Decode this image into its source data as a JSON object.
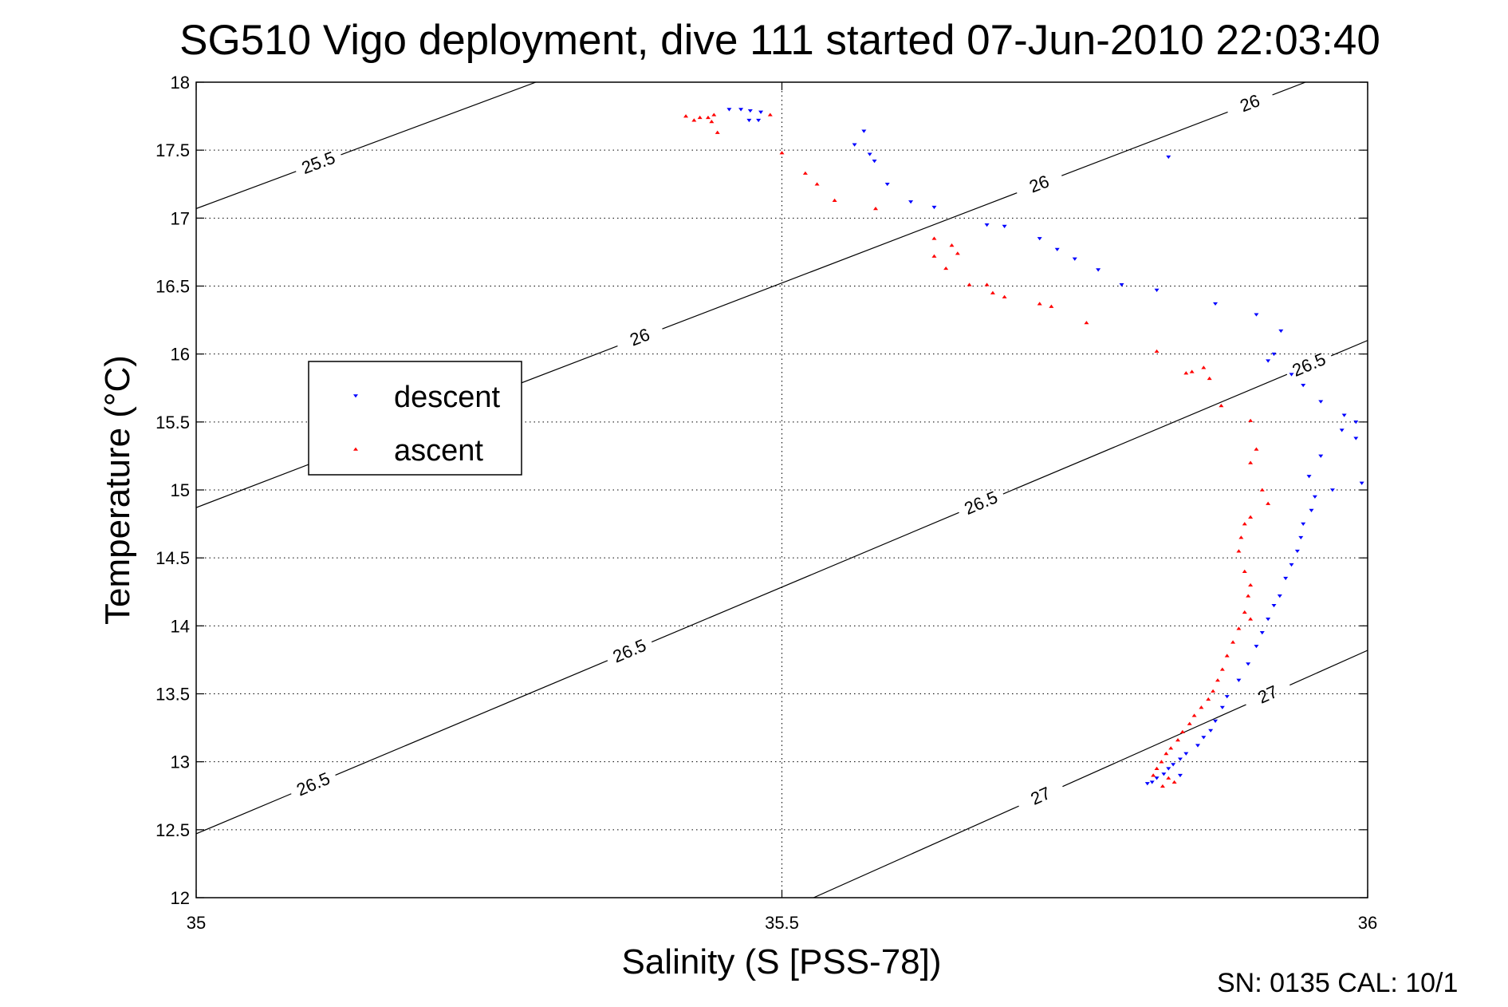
{
  "chart_data": {
    "type": "scatter",
    "title": "SG510 Vigo deployment, dive 111 started 07-Jun-2010 22:03:40",
    "xlabel": "Salinity (S [PSS-78])",
    "ylabel": "Temperature (°C)",
    "xlim": [
      35,
      36
    ],
    "ylim": [
      12,
      18
    ],
    "x_ticks": [
      "35",
      "35.5",
      "36"
    ],
    "y_ticks": [
      "12",
      "12.5",
      "13",
      "13.5",
      "14",
      "14.5",
      "15",
      "15.5",
      "16",
      "16.5",
      "17",
      "17.5",
      "18"
    ],
    "grid": "dotted",
    "legend": {
      "placement": "center-left",
      "entries": [
        {
          "label": "descent",
          "color": "#0000ff",
          "marker": "triangle-down"
        },
        {
          "label": "ascent",
          "color": "#ff0000",
          "marker": "triangle-up"
        }
      ]
    },
    "density_contours": [
      {
        "level": 25.5,
        "points": [
          [
            35.0,
            17.07
          ],
          [
            35.29,
            18.0
          ]
        ],
        "labels": [
          "25.5"
        ]
      },
      {
        "level": 26.0,
        "points": [
          [
            35.0,
            14.87
          ],
          [
            35.947,
            18.0
          ]
        ],
        "labels": [
          "26",
          "26",
          "26"
        ]
      },
      {
        "level": 26.5,
        "points": [
          [
            35.0,
            12.47
          ],
          [
            36.0,
            16.1
          ]
        ],
        "labels": [
          "26.5",
          "26.5",
          "26.5",
          "26.5"
        ]
      },
      {
        "level": 27.0,
        "points": [
          [
            35.527,
            12.0
          ],
          [
            36.0,
            13.82
          ]
        ],
        "labels": [
          "27",
          "27"
        ]
      }
    ],
    "series": [
      {
        "name": "descent",
        "color": "#0000ff",
        "points": [
          [
            35.455,
            17.8
          ],
          [
            35.465,
            17.8
          ],
          [
            35.473,
            17.79
          ],
          [
            35.482,
            17.78
          ],
          [
            35.472,
            17.72
          ],
          [
            35.48,
            17.72
          ],
          [
            35.562,
            17.54
          ],
          [
            35.57,
            17.64
          ],
          [
            35.575,
            17.47
          ],
          [
            35.579,
            17.42
          ],
          [
            35.59,
            17.25
          ],
          [
            35.61,
            17.12
          ],
          [
            35.63,
            17.08
          ],
          [
            35.675,
            16.95
          ],
          [
            35.69,
            16.94
          ],
          [
            35.72,
            16.85
          ],
          [
            35.735,
            16.77
          ],
          [
            35.75,
            16.7
          ],
          [
            35.77,
            16.62
          ],
          [
            35.79,
            16.51
          ],
          [
            35.82,
            16.47
          ],
          [
            35.83,
            17.45
          ],
          [
            35.87,
            16.37
          ],
          [
            35.905,
            16.29
          ],
          [
            35.926,
            16.17
          ],
          [
            35.92,
            16.0
          ],
          [
            35.915,
            15.95
          ],
          [
            35.935,
            15.85
          ],
          [
            35.945,
            15.77
          ],
          [
            35.96,
            15.65
          ],
          [
            35.98,
            15.55
          ],
          [
            35.99,
            15.5
          ],
          [
            35.978,
            15.44
          ],
          [
            35.99,
            15.38
          ],
          [
            35.96,
            15.25
          ],
          [
            35.95,
            15.1
          ],
          [
            35.995,
            15.05
          ],
          [
            35.97,
            15.0
          ],
          [
            35.955,
            14.95
          ],
          [
            35.952,
            14.85
          ],
          [
            35.945,
            14.75
          ],
          [
            35.943,
            14.65
          ],
          [
            35.94,
            14.55
          ],
          [
            35.935,
            14.45
          ],
          [
            35.93,
            14.35
          ],
          [
            35.925,
            14.22
          ],
          [
            35.92,
            14.15
          ],
          [
            35.915,
            14.05
          ],
          [
            35.91,
            13.95
          ],
          [
            35.905,
            13.85
          ],
          [
            35.898,
            13.72
          ],
          [
            35.89,
            13.6
          ],
          [
            35.88,
            13.48
          ],
          [
            35.876,
            13.4
          ],
          [
            35.87,
            13.3
          ],
          [
            35.866,
            13.23
          ],
          [
            35.86,
            13.18
          ],
          [
            35.855,
            13.12
          ],
          [
            35.845,
            13.06
          ],
          [
            35.84,
            13.02
          ],
          [
            35.834,
            12.98
          ],
          [
            35.83,
            12.95
          ],
          [
            35.826,
            12.91
          ],
          [
            35.82,
            12.88
          ],
          [
            35.84,
            12.9
          ],
          [
            35.812,
            12.84
          ],
          [
            35.816,
            12.85
          ]
        ]
      },
      {
        "name": "ascent",
        "color": "#ff0000",
        "points": [
          [
            35.418,
            17.75
          ],
          [
            35.425,
            17.72
          ],
          [
            35.43,
            17.74
          ],
          [
            35.437,
            17.74
          ],
          [
            35.442,
            17.76
          ],
          [
            35.44,
            17.71
          ],
          [
            35.445,
            17.63
          ],
          [
            35.49,
            17.76
          ],
          [
            35.5,
            17.48
          ],
          [
            35.52,
            17.33
          ],
          [
            35.53,
            17.25
          ],
          [
            35.545,
            17.13
          ],
          [
            35.58,
            17.07
          ],
          [
            35.63,
            16.85
          ],
          [
            35.645,
            16.8
          ],
          [
            35.65,
            16.74
          ],
          [
            35.63,
            16.72
          ],
          [
            35.64,
            16.63
          ],
          [
            35.66,
            16.51
          ],
          [
            35.675,
            16.51
          ],
          [
            35.68,
            16.45
          ],
          [
            35.69,
            16.42
          ],
          [
            35.72,
            16.37
          ],
          [
            35.73,
            16.35
          ],
          [
            35.76,
            16.23
          ],
          [
            35.82,
            16.02
          ],
          [
            35.845,
            15.86
          ],
          [
            35.85,
            15.87
          ],
          [
            35.86,
            15.9
          ],
          [
            35.865,
            15.82
          ],
          [
            35.875,
            15.62
          ],
          [
            35.9,
            15.51
          ],
          [
            35.905,
            15.3
          ],
          [
            35.9,
            15.2
          ],
          [
            35.91,
            15.0
          ],
          [
            35.915,
            14.9
          ],
          [
            35.9,
            14.8
          ],
          [
            35.895,
            14.75
          ],
          [
            35.892,
            14.65
          ],
          [
            35.89,
            14.55
          ],
          [
            35.895,
            14.4
          ],
          [
            35.9,
            14.3
          ],
          [
            35.898,
            14.22
          ],
          [
            35.895,
            14.1
          ],
          [
            35.9,
            14.05
          ],
          [
            35.89,
            13.98
          ],
          [
            35.885,
            13.88
          ],
          [
            35.88,
            13.78
          ],
          [
            35.876,
            13.68
          ],
          [
            35.872,
            13.6
          ],
          [
            35.868,
            13.52
          ],
          [
            35.864,
            13.46
          ],
          [
            35.858,
            13.4
          ],
          [
            35.852,
            13.34
          ],
          [
            35.848,
            13.28
          ],
          [
            35.842,
            13.22
          ],
          [
            35.838,
            13.16
          ],
          [
            35.832,
            13.1
          ],
          [
            35.828,
            13.06
          ],
          [
            35.824,
            13.0
          ],
          [
            35.82,
            12.95
          ],
          [
            35.817,
            12.9
          ],
          [
            35.835,
            12.85
          ],
          [
            35.83,
            12.88
          ],
          [
            35.825,
            12.82
          ]
        ]
      }
    ]
  },
  "footer": {
    "serial_text": "SN: 0135  CAL: 10/1"
  }
}
